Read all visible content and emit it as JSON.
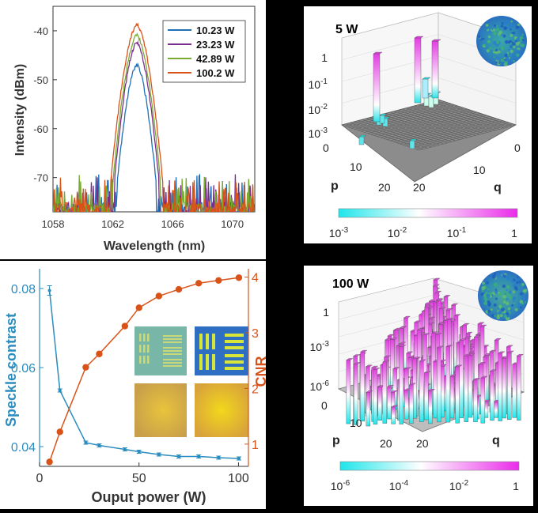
{
  "chart_data": [
    {
      "type": "line",
      "panel": "a",
      "title": "",
      "xlabel": "Wavelength (nm)",
      "ylabel": "Intensity (dBm)",
      "xlim": [
        1058,
        1071.5
      ],
      "ylim": [
        -77,
        -35
      ],
      "xticks": [
        1058,
        1062,
        1066,
        1070
      ],
      "yticks": [
        -40,
        -50,
        -60,
        -70
      ],
      "grid": false,
      "legend_position": "top-right",
      "center": 1063.6,
      "noise_floor": -73,
      "series": [
        {
          "name": "10.23 W",
          "color": "#1f6fb8",
          "peak": -47.0,
          "halfwidth": 1.3
        },
        {
          "name": "23.23 W",
          "color": "#7b2d8e",
          "peak": -42.5,
          "halfwidth": 1.5
        },
        {
          "name": "42.89 W",
          "color": "#77ac30",
          "peak": -41.0,
          "halfwidth": 1.6
        },
        {
          "name": "100.2 W",
          "color": "#d95319",
          "peak": -38.8,
          "halfwidth": 1.75
        }
      ]
    },
    {
      "type": "line",
      "panel": "c",
      "title": "",
      "xlabel": "Ouput power (W)",
      "ylabel": "Speckle contrast",
      "y2label": "CNR",
      "xlim": [
        0,
        105
      ],
      "ylim": [
        0.035,
        0.085
      ],
      "y2lim": [
        0.6,
        4.15
      ],
      "xticks": [
        0,
        50,
        100
      ],
      "yticks": [
        0.04,
        0.06,
        0.08
      ],
      "y2ticks": [
        1,
        2,
        3,
        4
      ],
      "grid": false,
      "series": [
        {
          "axis": "left",
          "color": "#2b8cbe",
          "x": [
            5,
            10.23,
            23.23,
            30,
            42.89,
            50,
            60,
            70,
            80,
            90,
            100.2
          ],
          "y": [
            0.0795,
            0.0542,
            0.041,
            0.0403,
            0.0393,
            0.0387,
            0.038,
            0.0375,
            0.0375,
            0.0372,
            0.037
          ]
        },
        {
          "axis": "right",
          "color": "#d95319",
          "x": [
            5,
            10.23,
            23.23,
            30,
            42.89,
            50,
            60,
            70,
            80,
            90,
            100.2
          ],
          "y": [
            0.68,
            1.22,
            2.38,
            2.62,
            3.12,
            3.45,
            3.66,
            3.78,
            3.89,
            3.94,
            3.99
          ]
        }
      ]
    },
    {
      "type": "bar3d",
      "panel": "b",
      "title": "5 W",
      "xlabel": "p",
      "ylabel": "q",
      "zscale": "log",
      "zticks": [
        "1",
        "10^-1",
        "10^-2",
        "10^-3"
      ],
      "p_ticks": [
        "0",
        "10",
        "20"
      ],
      "q_ticks": [
        "0",
        "10",
        "20"
      ],
      "colorbar": {
        "min_label": "10^-3",
        "mid1_label": "10^-2",
        "mid2_label": "10^-1",
        "max_label": "1"
      }
    },
    {
      "type": "bar3d",
      "panel": "d",
      "title": "100 W",
      "xlabel": "p",
      "ylabel": "q",
      "zscale": "log",
      "zticks": [
        "1",
        "10^-3",
        "10^-6"
      ],
      "p_ticks": [
        "0",
        "10",
        "20"
      ],
      "q_ticks": [
        "20"
      ],
      "colorbar": {
        "min_label": "10^-6",
        "mid1_label": "10^-4",
        "mid2_label": "10^-2",
        "max_label": "1"
      }
    }
  ]
}
